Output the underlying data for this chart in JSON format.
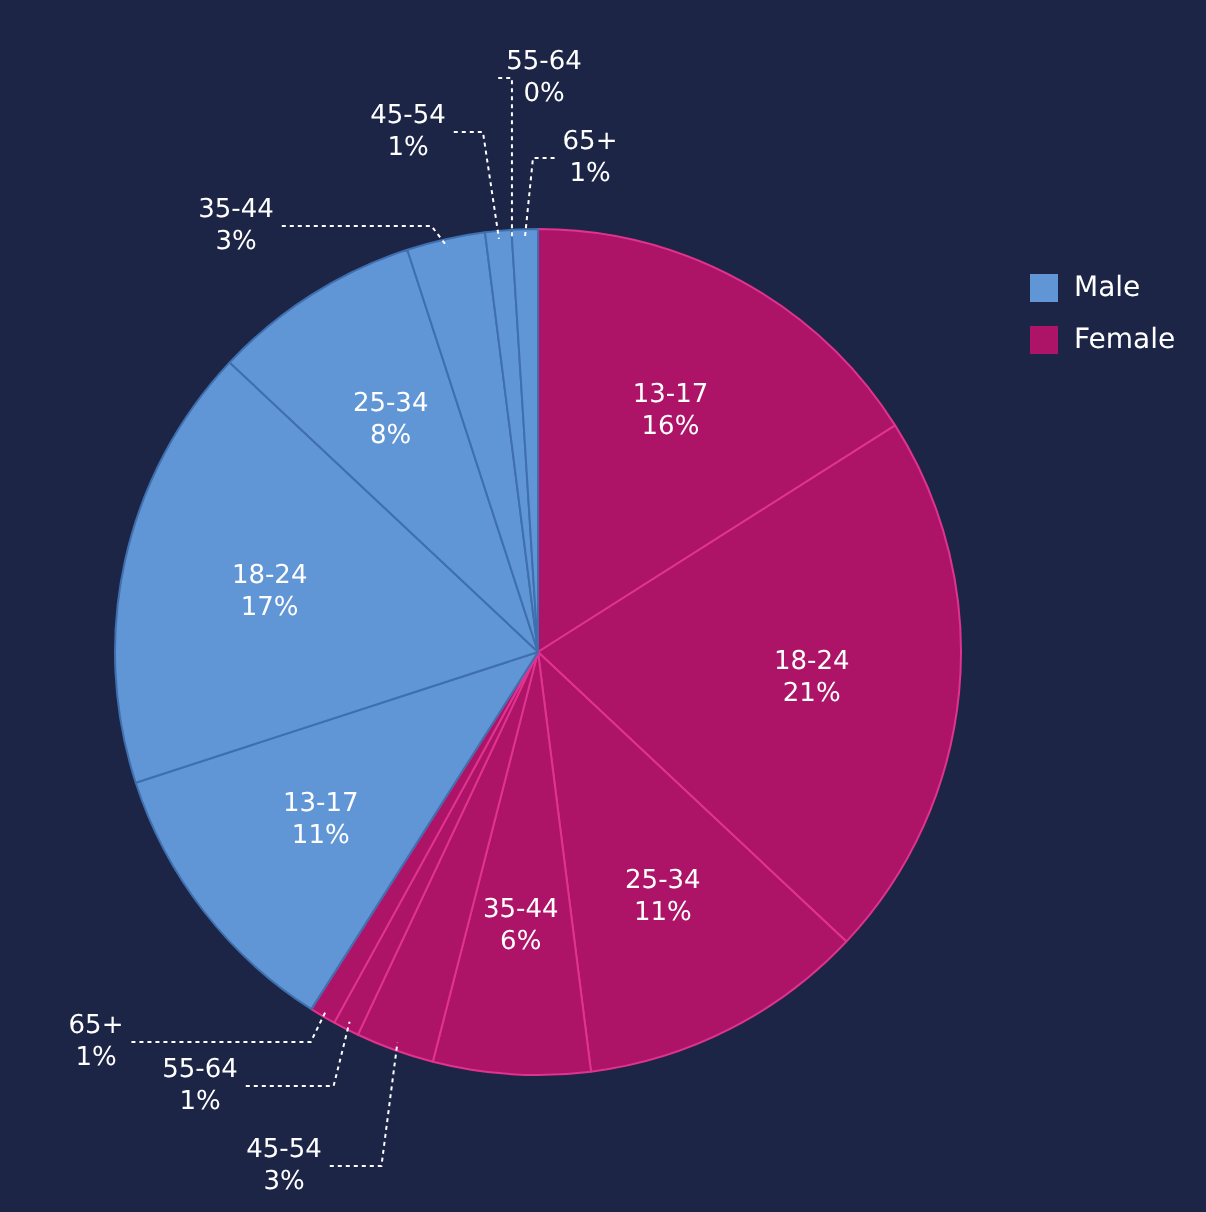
{
  "chart_data": {
    "type": "pie",
    "categories": [
      "13-17",
      "18-24",
      "25-34",
      "35-44",
      "45-54",
      "55-64",
      "65+",
      "13-17",
      "18-24",
      "25-34",
      "35-44",
      "45-54",
      "55-64",
      "65+"
    ],
    "values": [
      16,
      21,
      11,
      6,
      3,
      1,
      1,
      11,
      17,
      8,
      3,
      1,
      0,
      1
    ],
    "value_labels": [
      "16%",
      "21%",
      "11%",
      "6%",
      "3%",
      "1%",
      "1%",
      "11%",
      "17%",
      "8%",
      "3%",
      "1%",
      "0%",
      "1%"
    ],
    "colors": [
      "#ad1468",
      "#ad1468",
      "#ad1468",
      "#ad1468",
      "#ad1468",
      "#ad1468",
      "#ad1468",
      "#6096d6",
      "#6096d6",
      "#6096d6",
      "#6096d6",
      "#6096d6",
      "#6096d6",
      "#6096d6"
    ],
    "annotations": [
      "Male",
      "Female"
    ]
  }
}
